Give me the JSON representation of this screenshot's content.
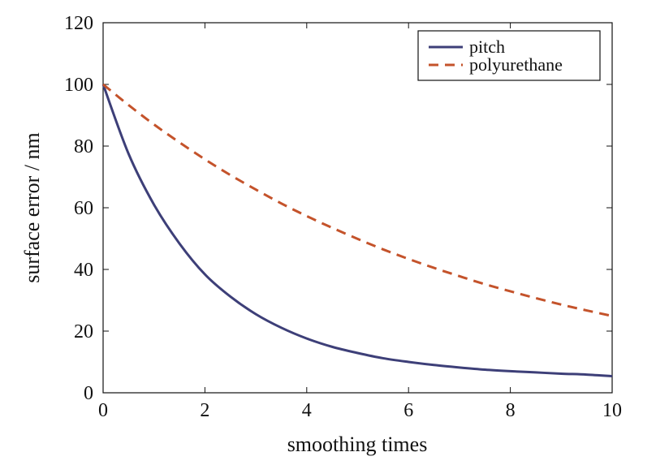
{
  "chart_data": {
    "type": "line",
    "title": "",
    "xlabel": "smoothing times",
    "ylabel": "surface error / nm",
    "xlim": [
      0,
      10
    ],
    "ylim": [
      0,
      120
    ],
    "xticks": [
      0,
      2,
      4,
      6,
      8,
      10
    ],
    "yticks": [
      0,
      20,
      40,
      60,
      80,
      100,
      120
    ],
    "grid": false,
    "legend_position": "top-right",
    "x": [
      0,
      0.5,
      1,
      1.5,
      2,
      2.5,
      3,
      3.5,
      4,
      4.5,
      5,
      5.5,
      6,
      6.5,
      7,
      7.5,
      8,
      8.5,
      9,
      9.5,
      10
    ],
    "series": [
      {
        "name": "pitch",
        "color": "#3d3f78",
        "style": "solid",
        "values": [
          100,
          77.5,
          61.0,
          48.4,
          38.4,
          31.2,
          25.5,
          21.1,
          17.6,
          14.9,
          12.9,
          11.2,
          10.0,
          9.0,
          8.2,
          7.5,
          7.0,
          6.6,
          6.2,
          5.9,
          5.4
        ]
      },
      {
        "name": "polyurethane",
        "color": "#c4532b",
        "style": "dashed",
        "values": [
          100,
          93.3,
          87.0,
          81.2,
          75.7,
          70.6,
          65.9,
          61.4,
          57.3,
          53.5,
          49.9,
          46.5,
          43.4,
          40.5,
          37.8,
          35.2,
          32.9,
          30.7,
          28.6,
          26.7,
          24.9
        ]
      }
    ]
  }
}
